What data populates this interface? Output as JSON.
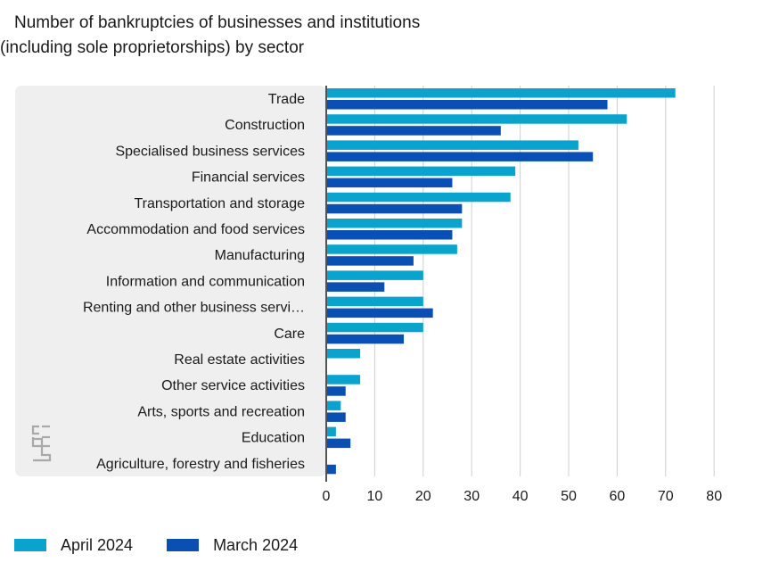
{
  "title_line1": "Number of bankruptcies of businesses and institutions",
  "title_line2": "(including sole proprietorships) by sector",
  "colors": {
    "april": "#0aa3cd",
    "march": "#0a50b4",
    "panel": "#efefef",
    "grid": "#cfcfcf",
    "axis": "#555555"
  },
  "chart_data": {
    "type": "bar",
    "orientation": "horizontal",
    "title": "Number of bankruptcies of businesses and institutions (including sole proprietorships) by sector",
    "categories": [
      "Trade",
      "Construction",
      "Specialised business services",
      "Financial services",
      "Transportation and storage",
      "Accommodation and food services",
      "Manufacturing",
      "Information and communication",
      "Renting and other business servi…",
      "Care",
      "Real estate activities",
      "Other service activities",
      "Arts, sports and recreation",
      "Education",
      "Agriculture, forestry and fisheries"
    ],
    "series": [
      {
        "name": "April 2024",
        "values": [
          72,
          62,
          52,
          39,
          38,
          28,
          27,
          20,
          20,
          20,
          7,
          7,
          3,
          2,
          0
        ]
      },
      {
        "name": "March 2024",
        "values": [
          58,
          36,
          55,
          26,
          28,
          26,
          18,
          12,
          22,
          16,
          0,
          4,
          4,
          5,
          2
        ]
      }
    ],
    "xlim": [
      0,
      80
    ],
    "xticks": [
      0,
      10,
      20,
      30,
      40,
      50,
      60,
      70,
      80
    ],
    "grid": true,
    "legend_position": "bottom-left"
  }
}
